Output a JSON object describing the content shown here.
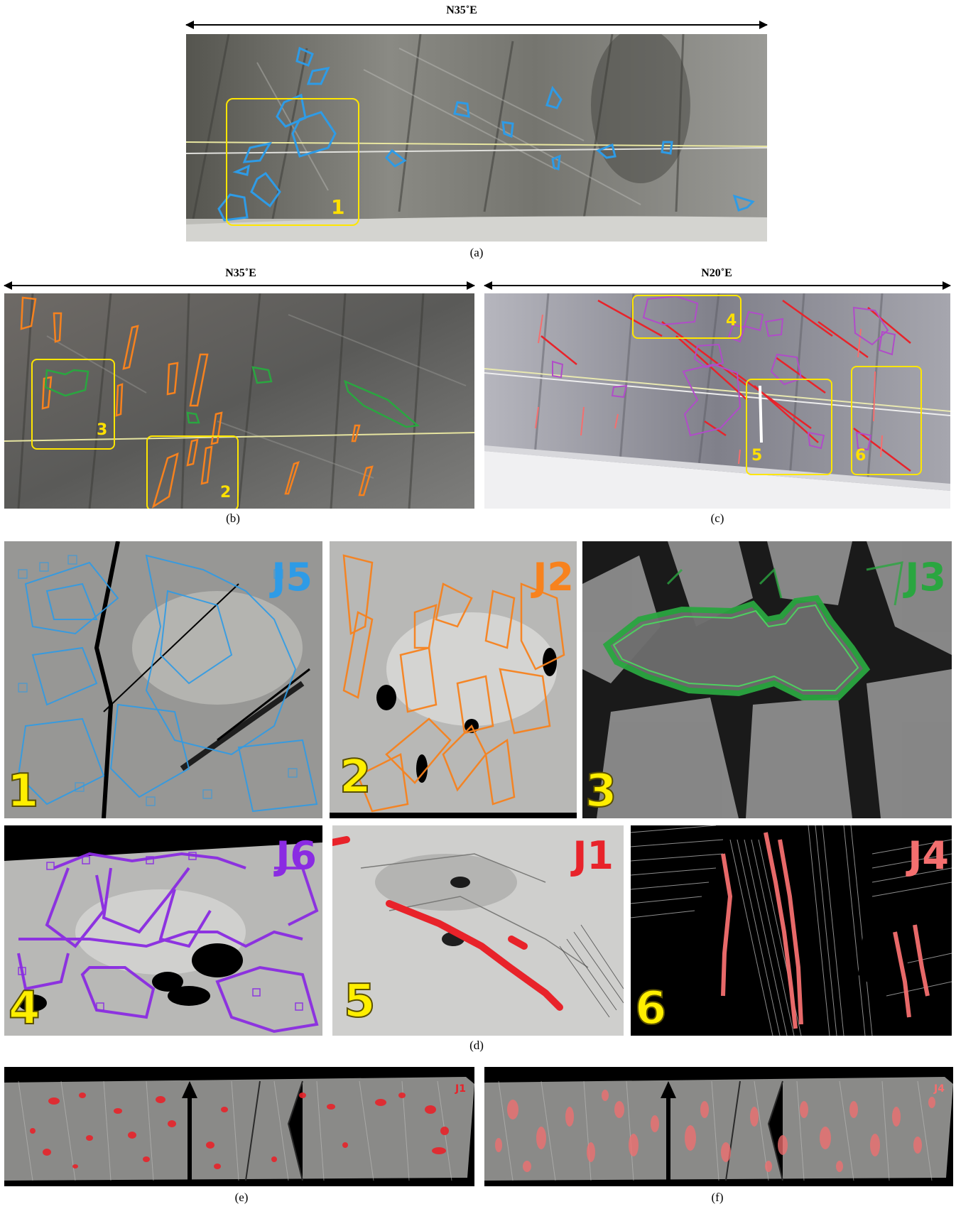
{
  "figure": {
    "panel_a": {
      "caption": "(a)",
      "direction": "N35˚E",
      "box_label": "1"
    },
    "panel_b": {
      "caption": "(b)",
      "direction": "N35˚E",
      "box_labels": [
        "3",
        "2"
      ]
    },
    "panel_c": {
      "caption": "(c)",
      "direction": "N20˚E",
      "box_labels": [
        "4",
        "5",
        "6"
      ]
    },
    "panel_d": {
      "caption": "(d)",
      "tiles": [
        {
          "number": "1",
          "tag": "J5",
          "color": "#2e9be6"
        },
        {
          "number": "2",
          "tag": "J2",
          "color": "#f7821e"
        },
        {
          "number": "3",
          "tag": "J3",
          "color": "#2aa640"
        },
        {
          "number": "4",
          "tag": "J6",
          "color": "#8a2be2"
        },
        {
          "number": "5",
          "tag": "J1",
          "color": "#e8232a"
        },
        {
          "number": "6",
          "tag": "J4",
          "color": "#f46f6f"
        }
      ]
    },
    "panel_e": {
      "caption": "(e)",
      "tag": "J1",
      "color": "#e8232a"
    },
    "panel_f": {
      "caption": "(f)",
      "tag": "J4",
      "color": "#f46f6f"
    }
  },
  "colors": {
    "highlight_box": "#ffe600",
    "j5_blue": "#2e9be6",
    "j2_orange": "#f7821e",
    "j3_green": "#2aa640",
    "j6_purple": "#8a2be2",
    "j1_red": "#e8232a",
    "j4_pink": "#f46f6f"
  }
}
